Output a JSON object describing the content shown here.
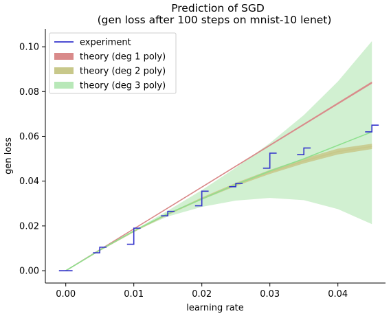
{
  "chart_data": {
    "type": "line",
    "title": "Prediction of SGD",
    "subtitle": "(gen loss after 100 steps on mnist-10 lenet)",
    "xlabel": "learning rate",
    "ylabel": "gen loss",
    "xlim": [
      -0.003,
      0.047
    ],
    "ylim": [
      -0.0055,
      0.108
    ],
    "xticks": [
      0.0,
      0.01,
      0.02,
      0.03,
      0.04
    ],
    "xtick_labels": [
      "0.00",
      "0.01",
      "0.02",
      "0.03",
      "0.04"
    ],
    "yticks": [
      0.0,
      0.02,
      0.04,
      0.06,
      0.08,
      0.1
    ],
    "ytick_labels": [
      "0.00",
      "0.02",
      "0.04",
      "0.06",
      "0.08",
      "0.10"
    ],
    "legend_position": "top-left",
    "series": [
      {
        "name": "experiment",
        "kind": "step",
        "color": "#3333cc",
        "segments": [
          {
            "x0": -0.001,
            "x1": 0.001,
            "y_lo": 0.0,
            "y_hi": 0.0
          },
          {
            "x0": 0.004,
            "x1": 0.006,
            "y_lo": 0.008,
            "y_hi": 0.0105
          },
          {
            "x0": 0.009,
            "x1": 0.011,
            "y_lo": 0.0118,
            "y_hi": 0.019
          },
          {
            "x0": 0.014,
            "x1": 0.016,
            "y_lo": 0.0245,
            "y_hi": 0.0265
          },
          {
            "x0": 0.019,
            "x1": 0.021,
            "y_lo": 0.029,
            "y_hi": 0.0355
          },
          {
            "x0": 0.024,
            "x1": 0.026,
            "y_lo": 0.0375,
            "y_hi": 0.039
          },
          {
            "x0": 0.029,
            "x1": 0.031,
            "y_lo": 0.0458,
            "y_hi": 0.0525
          },
          {
            "x0": 0.034,
            "x1": 0.036,
            "y_lo": 0.0518,
            "y_hi": 0.0548
          },
          {
            "x0": 0.044,
            "x1": 0.046,
            "y_lo": 0.062,
            "y_hi": 0.065
          }
        ]
      },
      {
        "name": "theory (deg 1 poly)",
        "kind": "band",
        "color": "#d98a8a",
        "x": [
          0.0,
          0.045
        ],
        "y": [
          0.0,
          0.084
        ],
        "y_low": [
          0.0,
          0.0835
        ],
        "y_high": [
          0.0,
          0.0845
        ]
      },
      {
        "name": "theory (deg 2 poly)",
        "kind": "band",
        "color": "#c8c88a",
        "x": [
          0.0,
          0.005,
          0.01,
          0.015,
          0.02,
          0.025,
          0.03,
          0.035,
          0.04,
          0.045
        ],
        "y": [
          0.0,
          0.0091,
          0.0175,
          0.0252,
          0.0322,
          0.0385,
          0.0441,
          0.049,
          0.0532,
          0.0555
        ],
        "y_low": [
          0.0,
          0.009,
          0.0173,
          0.0249,
          0.0317,
          0.0378,
          0.0432,
          0.0479,
          0.0519,
          0.0543
        ],
        "y_high": [
          0.0,
          0.0092,
          0.0177,
          0.0255,
          0.0327,
          0.0392,
          0.045,
          0.0501,
          0.0545,
          0.0567
        ]
      },
      {
        "name": "theory (deg 3 poly)",
        "kind": "band",
        "color": "#b8e8b8",
        "line_color": "#8ee08e",
        "x": [
          0.0,
          0.005,
          0.01,
          0.015,
          0.02,
          0.025,
          0.03,
          0.035,
          0.04,
          0.045
        ],
        "y": [
          0.0,
          0.0092,
          0.0178,
          0.0255,
          0.032,
          0.0385,
          0.0445,
          0.05,
          0.056,
          0.062
        ],
        "y_low": [
          0.0,
          0.0092,
          0.0176,
          0.0242,
          0.0285,
          0.0313,
          0.0325,
          0.0315,
          0.0275,
          0.0208
        ],
        "y_high": [
          0.0,
          0.0092,
          0.018,
          0.0268,
          0.036,
          0.046,
          0.057,
          0.0695,
          0.0845,
          0.1025
        ]
      }
    ]
  }
}
